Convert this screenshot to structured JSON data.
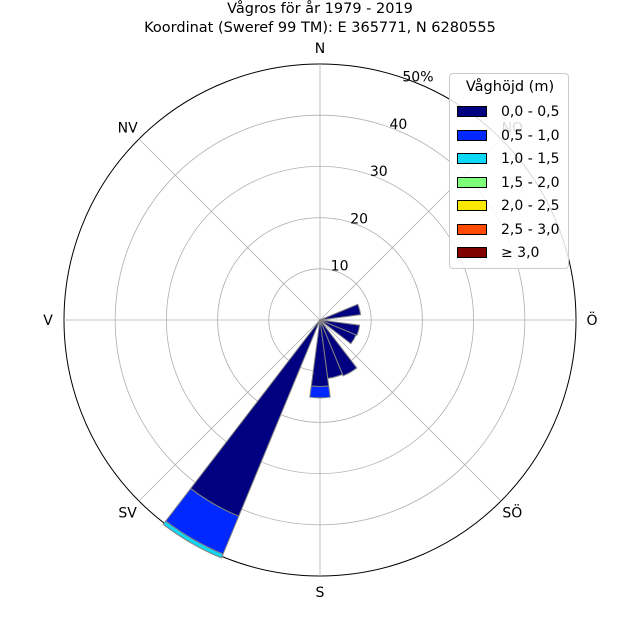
{
  "chart_data": {
    "type": "wind-rose",
    "title": "Vågros för år 1979 - 2019",
    "subtitle": "Koordinat (Sweref 99 TM): E 365771, N 6280555",
    "directions": [
      "N",
      "NO",
      "Ö",
      "SÖ",
      "S",
      "SV",
      "V",
      "NV"
    ],
    "radial_ticks": [
      "10",
      "20",
      "30",
      "40",
      "50%"
    ],
    "radial_max": 50,
    "legend_title": "Våghöjd (m)",
    "legend_placement": "top-right",
    "bins": [
      "0,0 - 0,5",
      "0,5 - 1,0",
      "1,0 - 1,5",
      "1,5 - 2,0",
      "2,0 - 2,5",
      "2,5 - 3,0",
      "≥ 3,0"
    ],
    "colors": [
      "#000080",
      "#0028ff",
      "#0dd8f8",
      "#7dff7a",
      "#f9e800",
      "#ff4a00",
      "#800000"
    ],
    "sectors": [
      {
        "bearing": 75,
        "values": [
          8.0,
          0.0,
          0.0,
          0.0,
          0.0,
          0.0,
          0.0
        ]
      },
      {
        "bearing": 105,
        "values": [
          7.8,
          0.0,
          0.0,
          0.0,
          0.0,
          0.0,
          0.0
        ]
      },
      {
        "bearing": 120,
        "values": [
          7.6,
          0.0,
          0.0,
          0.0,
          0.0,
          0.0,
          0.0
        ]
      },
      {
        "bearing": 150,
        "values": [
          11.8,
          0.0,
          0.0,
          0.0,
          0.0,
          0.0,
          0.0
        ]
      },
      {
        "bearing": 165,
        "values": [
          11.5,
          0.0,
          0.0,
          0.0,
          0.0,
          0.0,
          0.0
        ]
      },
      {
        "bearing": 180,
        "values": [
          13.0,
          2.2,
          0.0,
          0.0,
          0.0,
          0.0,
          0.0
        ]
      },
      {
        "bearing": 210,
        "values": [
          41.5,
          8.0,
          0.8,
          0.0,
          0.0,
          0.0,
          0.0
        ]
      }
    ],
    "sector_width_deg": 15,
    "grid": true
  }
}
